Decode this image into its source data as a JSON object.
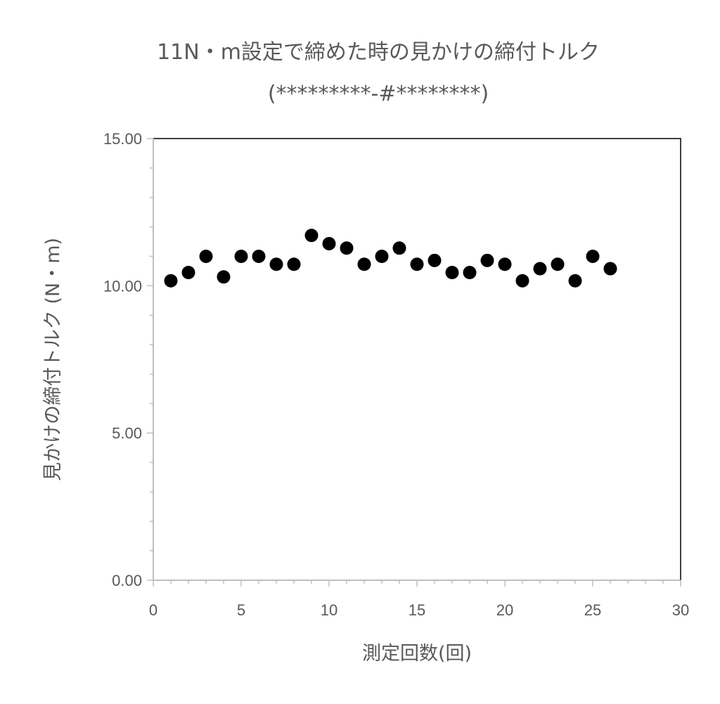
{
  "chart_data": {
    "type": "scatter",
    "title": "11N・m設定で締めた時の見かけの締付トルク",
    "subtitle": "(*********-#********)",
    "xlabel": "測定回数(回)",
    "ylabel": "見かけの締付トルク (N・m)",
    "xlim": [
      0,
      30
    ],
    "ylim": [
      0,
      15
    ],
    "x_ticks": [
      "0",
      "5",
      "10",
      "15",
      "20",
      "25",
      "30"
    ],
    "y_ticks": [
      "0.00",
      "5.00",
      "10.00",
      "15.00"
    ],
    "grid": false,
    "legend": "none",
    "marker_color": "#000000",
    "series": [
      {
        "x": [
          1,
          2,
          3,
          4,
          5,
          6,
          7,
          8,
          9,
          10,
          11,
          12,
          13,
          14,
          15,
          16,
          17,
          18,
          19,
          20,
          21,
          22,
          23,
          24,
          25,
          26
        ],
        "values": [
          10.17,
          10.45,
          11.0,
          10.3,
          11.0,
          11.0,
          10.73,
          10.73,
          11.71,
          11.43,
          11.28,
          10.73,
          11.0,
          11.28,
          10.73,
          10.86,
          10.45,
          10.45,
          10.86,
          10.73,
          10.17,
          10.58,
          10.73,
          10.17,
          11.0,
          10.58
        ]
      }
    ]
  }
}
